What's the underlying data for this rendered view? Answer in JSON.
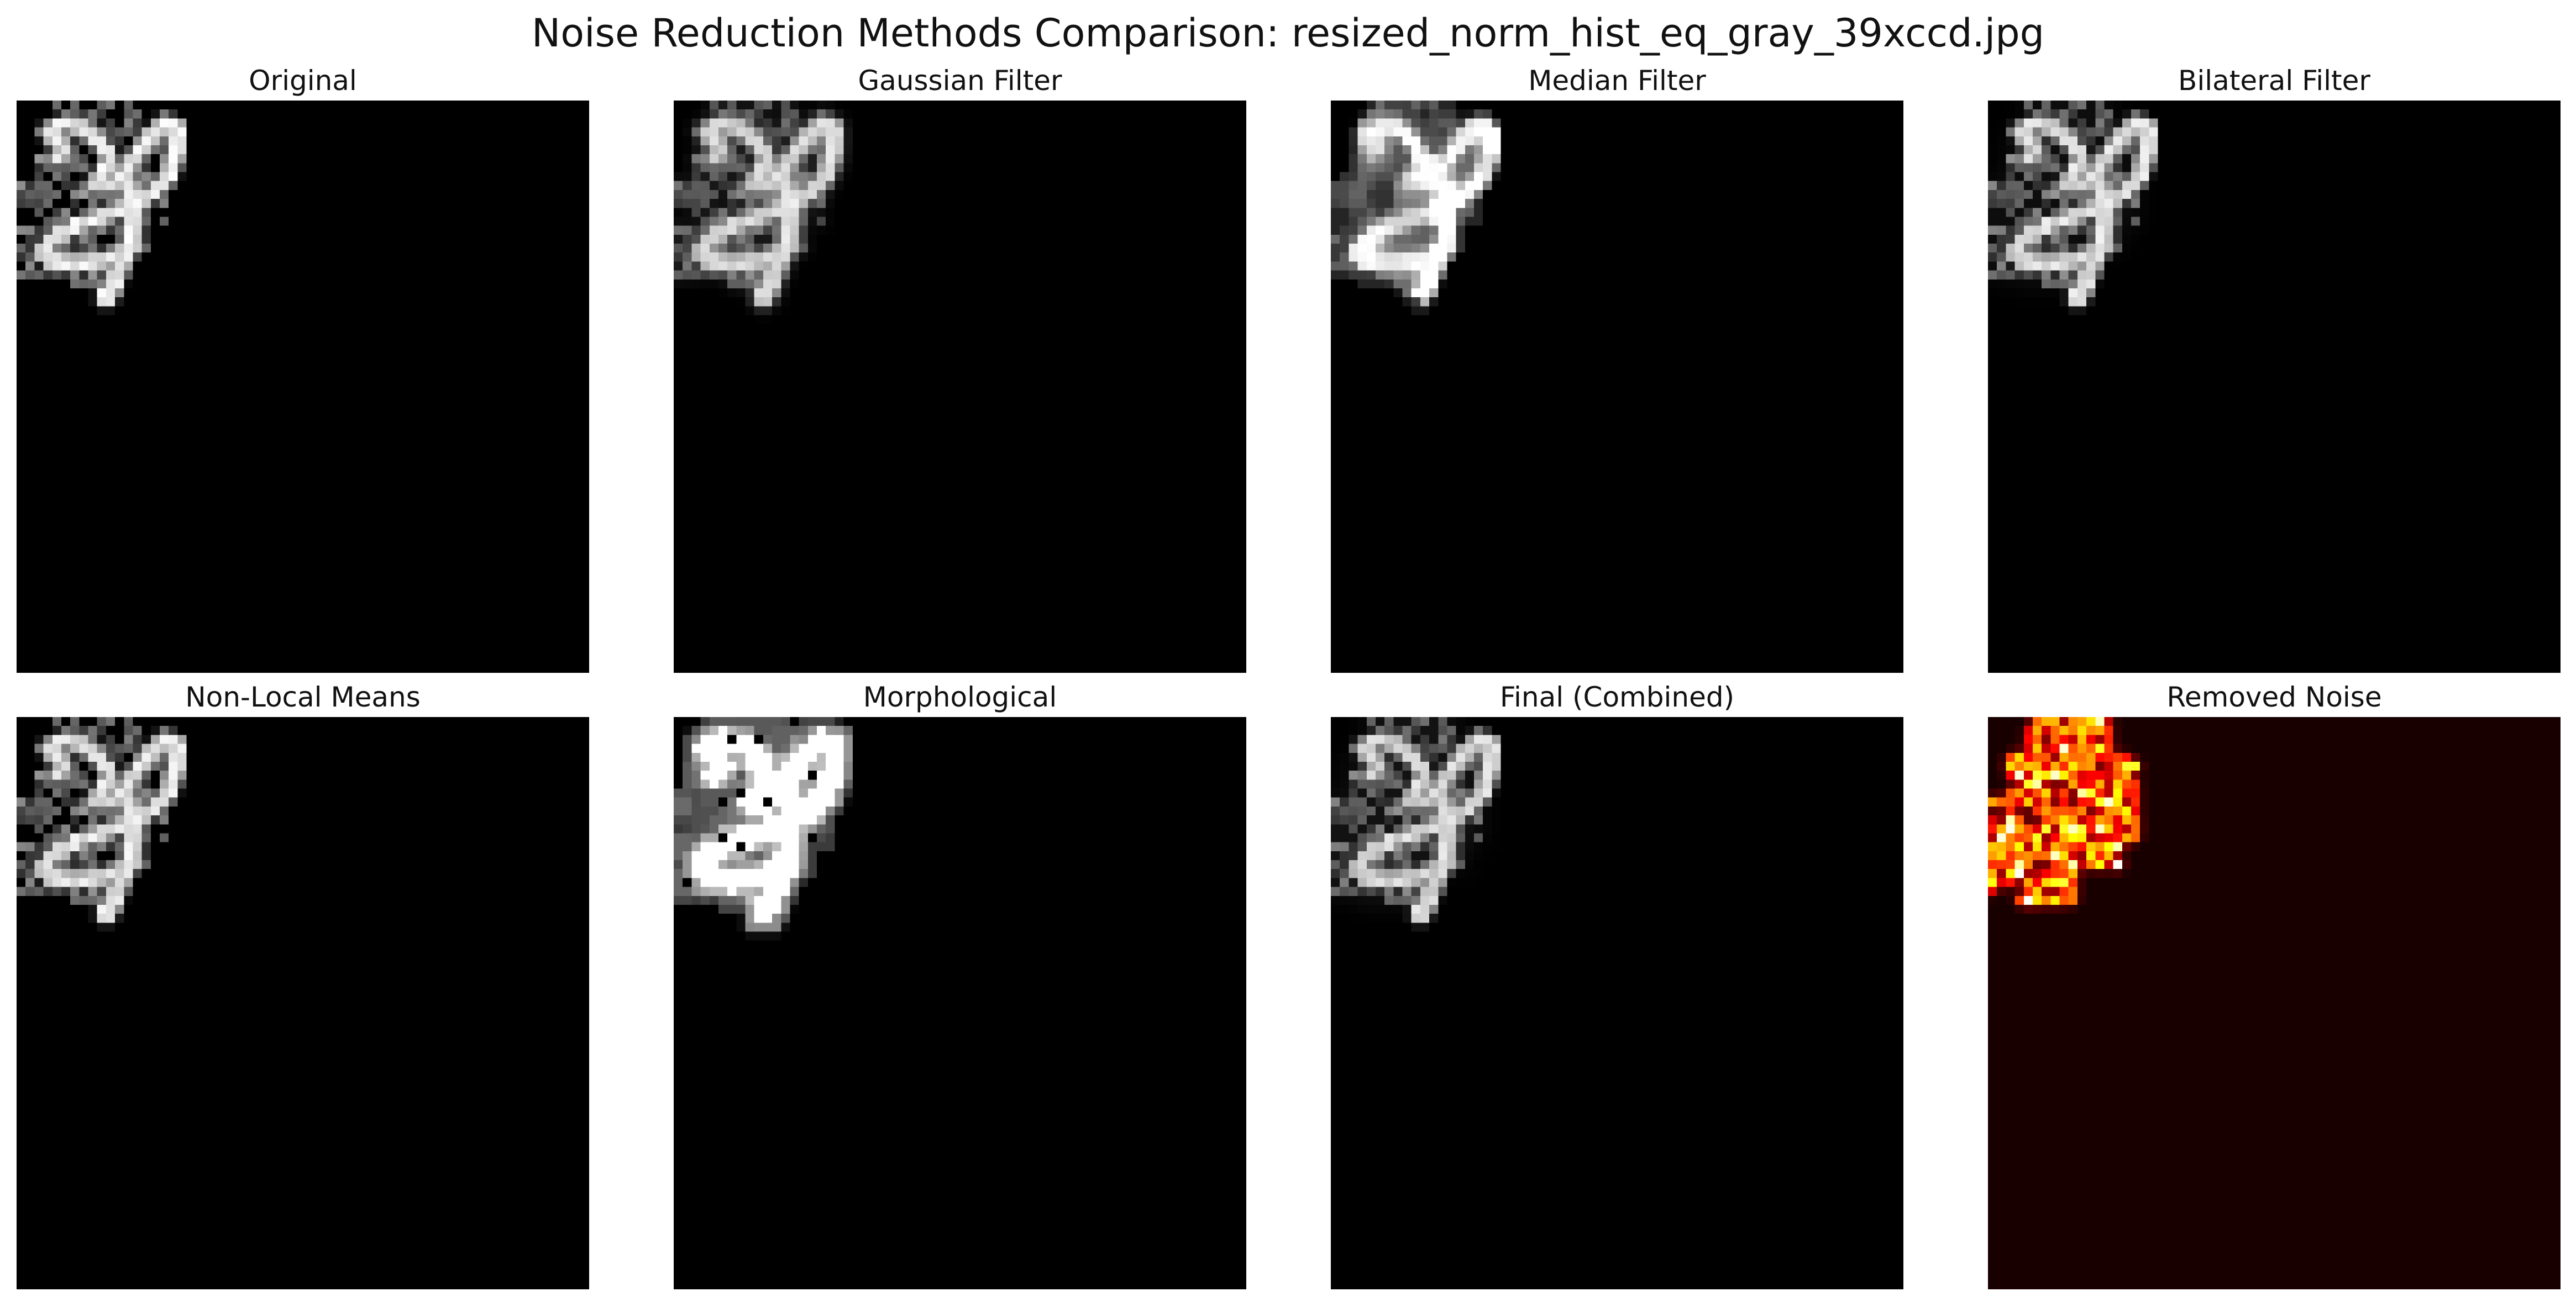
{
  "figure": {
    "title": "Noise Reduction Methods Comparison: resized_norm_hist_eq_gray_39xccd.jpg"
  },
  "panels": [
    {
      "id": "original",
      "title": "Original",
      "colormap": "gray"
    },
    {
      "id": "gaussian",
      "title": "Gaussian Filter",
      "colormap": "gray"
    },
    {
      "id": "median",
      "title": "Median Filter",
      "colormap": "gray"
    },
    {
      "id": "bilateral",
      "title": "Bilateral Filter",
      "colormap": "gray"
    },
    {
      "id": "nlmeans",
      "title": "Non-Local Means",
      "colormap": "gray"
    },
    {
      "id": "morphological",
      "title": "Morphological",
      "colormap": "gray"
    },
    {
      "id": "final",
      "title": "Final (Combined)",
      "colormap": "gray"
    },
    {
      "id": "noise",
      "title": "Removed Noise",
      "colormap": "hot"
    }
  ]
}
